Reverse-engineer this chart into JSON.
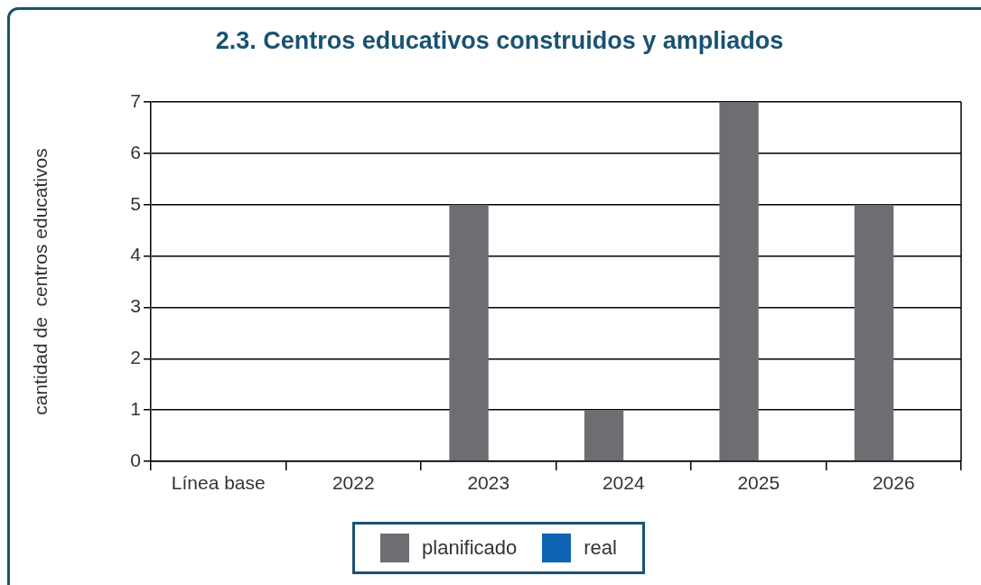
{
  "chart_data": {
    "type": "bar",
    "title": "2.3. Centros educativos construidos y ampliados",
    "ylabel": "cantidad de  centros educativos",
    "categories": [
      "Línea base",
      "2022",
      "2023",
      "2024",
      "2025",
      "2026"
    ],
    "series": [
      {
        "name": "planificado",
        "color": "#6d6e71",
        "values": [
          0,
          0,
          5,
          1,
          7,
          5
        ]
      },
      {
        "name": "real",
        "color": "#0f64b4",
        "values": [
          null,
          null,
          null,
          null,
          null,
          null
        ]
      }
    ],
    "ylim": [
      0,
      7
    ],
    "yticks": [
      0,
      1,
      2,
      3,
      4,
      5,
      6,
      7
    ],
    "grid": "y",
    "legend": "bottom"
  }
}
